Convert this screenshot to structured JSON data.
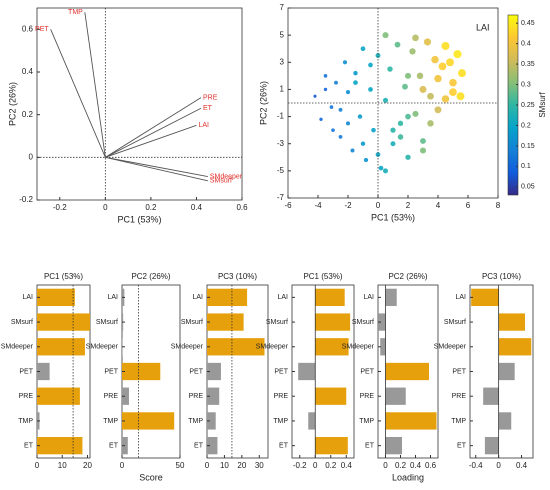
{
  "chart_data": [
    {
      "type": "biplot",
      "xlabel": "PC1 (53%)",
      "ylabel": "PC2 (26%)",
      "xlim": [
        -0.3,
        0.6
      ],
      "ylim": [
        -0.2,
        0.7
      ],
      "xticks": [
        -0.2,
        0,
        0.2,
        0.4,
        0.6
      ],
      "yticks": [
        -0.2,
        0,
        0.2,
        0.4,
        0.6
      ],
      "color": "#e0302a",
      "vectors": [
        {
          "name": "PET",
          "x": -0.24,
          "y": 0.6
        },
        {
          "name": "TMP",
          "x": -0.09,
          "y": 0.68
        },
        {
          "name": "PRE",
          "x": 0.42,
          "y": 0.28
        },
        {
          "name": "ET",
          "x": 0.42,
          "y": 0.23
        },
        {
          "name": "LAI",
          "x": 0.4,
          "y": 0.15
        },
        {
          "name": "SMdeeper",
          "x": 0.45,
          "y": -0.09
        },
        {
          "name": "SMsurf",
          "x": 0.45,
          "y": -0.11
        }
      ]
    },
    {
      "type": "scatter",
      "annotation": "LAI",
      "xlabel": "PC1 (53%)",
      "ylabel": "PC2 (26%)",
      "colorbar_label": "SMsurf",
      "xlim": [
        -6,
        8
      ],
      "ylim": [
        -7,
        7
      ],
      "xticks": [
        -6,
        -4,
        -2,
        0,
        2,
        4,
        6,
        8
      ],
      "yticks": [
        -7,
        -5,
        -3,
        -1,
        1,
        3,
        5,
        7
      ],
      "clim": [
        0.03,
        0.47
      ],
      "cticks": [
        0.05,
        0.1,
        0.15,
        0.2,
        0.25,
        0.3,
        0.35,
        0.4,
        0.45
      ],
      "x": [
        -4.2,
        -3.8,
        -3.5,
        -3.1,
        -2.8,
        -2.5,
        -2.2,
        -2.0,
        -1.7,
        -1.5,
        -1.2,
        -1.0,
        -0.8,
        -0.5,
        -0.3,
        0,
        0.2,
        0.5,
        0.8,
        1.0,
        1.3,
        1.5,
        1.8,
        2.0,
        2.3,
        2.5,
        2.8,
        3.0,
        3.3,
        3.5,
        3.8,
        4.0,
        4.3,
        4.5,
        4.8,
        5.0,
        5.3,
        5.6,
        -3,
        -2,
        -1,
        0,
        1,
        2,
        3,
        4,
        5,
        -1.5,
        0.5,
        2.5,
        4.5,
        -2.5,
        1.5,
        3.5,
        -0.5,
        0.5,
        3.0,
        5.5,
        -3.5,
        2.0
      ],
      "y": [
        0.5,
        -1.2,
        2.0,
        -0.3,
        1.5,
        -2.5,
        3.0,
        0.8,
        -3.5,
        2.2,
        -1.0,
        4.0,
        -4.2,
        1.0,
        -2.0,
        3.5,
        -4.8,
        0.2,
        2.5,
        -3.0,
        4.3,
        -1.5,
        1.2,
        -4.0,
        3.8,
        -0.8,
        2.0,
        -2.8,
        4.5,
        0.5,
        3.2,
        1.8,
        2.7,
        4.2,
        3.0,
        1.5,
        3.6,
        2.2,
        -2.0,
        -1.5,
        -3.0,
        -3.8,
        -2.0,
        -1.0,
        -3.5,
        -0.5,
        0.8,
        1.5,
        5.0,
        4.8,
        0.3,
        -0.5,
        -2.5,
        -1.5,
        2.8,
        -5.0,
        1.0,
        0.5,
        1.0,
        2.0
      ],
      "c": [
        0.08,
        0.1,
        0.12,
        0.12,
        0.14,
        0.13,
        0.16,
        0.16,
        0.15,
        0.18,
        0.18,
        0.2,
        0.17,
        0.2,
        0.19,
        0.22,
        0.2,
        0.23,
        0.25,
        0.22,
        0.28,
        0.25,
        0.28,
        0.24,
        0.32,
        0.3,
        0.33,
        0.28,
        0.38,
        0.35,
        0.4,
        0.4,
        0.42,
        0.44,
        0.43,
        0.41,
        0.45,
        0.44,
        0.12,
        0.15,
        0.18,
        0.2,
        0.24,
        0.27,
        0.3,
        0.36,
        0.42,
        0.2,
        0.3,
        0.34,
        0.4,
        0.14,
        0.26,
        0.33,
        0.2,
        0.22,
        0.37,
        0.44,
        0.1,
        0.3
      ]
    },
    {
      "type": "hbar",
      "title": "PC1 (53%)",
      "categories": [
        "LAI",
        "SMsurf",
        "SMdeeper",
        "PET",
        "PRE",
        "TMP",
        "ET"
      ],
      "values": [
        15,
        21,
        19,
        5,
        17,
        1,
        18
      ],
      "colors": [
        "#e6a00b",
        "#e6a00b",
        "#e6a00b",
        "#999999",
        "#e6a00b",
        "#999999",
        "#e6a00b"
      ],
      "xlim": [
        0,
        21
      ],
      "xticks": [
        0,
        10,
        20
      ],
      "refline": 14.3
    },
    {
      "type": "hbar",
      "title": "PC2 (26%)",
      "xlabel": "Score",
      "categories": [
        "LAI",
        "SMsurf",
        "SMdeeper",
        "PET",
        "PRE",
        "TMP",
        "ET"
      ],
      "values": [
        2,
        1,
        0.5,
        33,
        6,
        45,
        5
      ],
      "colors": [
        "#999999",
        "#999999",
        "#999999",
        "#e6a00b",
        "#999999",
        "#e6a00b",
        "#999999"
      ],
      "xlim": [
        0,
        50
      ],
      "xticks": [
        0,
        50
      ],
      "refline": 14.3
    },
    {
      "type": "hbar",
      "title": "PC3 (10%)",
      "categories": [
        "LAI",
        "SMsurf",
        "SMdeeper",
        "PET",
        "PRE",
        "TMP",
        "ET"
      ],
      "values": [
        23,
        21,
        33,
        8,
        7,
        5,
        6
      ],
      "colors": [
        "#e6a00b",
        "#e6a00b",
        "#e6a00b",
        "#999999",
        "#999999",
        "#999999",
        "#999999"
      ],
      "xlim": [
        0,
        35
      ],
      "xticks": [
        0,
        10,
        20,
        30
      ],
      "refline": 14.3
    },
    {
      "type": "hbar",
      "title": "PC1 (53%)",
      "categories": [
        "LAI",
        "SMsurf",
        "SMdeeper",
        "PET",
        "PRE",
        "TMP",
        "ET"
      ],
      "values": [
        0.38,
        0.45,
        0.43,
        -0.22,
        0.4,
        -0.09,
        0.42
      ],
      "colors": [
        "#e6a00b",
        "#e6a00b",
        "#e6a00b",
        "#999999",
        "#e6a00b",
        "#999999",
        "#e6a00b"
      ],
      "xlim": [
        -0.3,
        0.5
      ],
      "xticks": [
        -0.2,
        0,
        0.2,
        0.4
      ]
    },
    {
      "type": "hbar",
      "title": "PC2 (26%)",
      "xlabel": "Loading",
      "categories": [
        "LAI",
        "SMsurf",
        "SMdeeper",
        "PET",
        "PRE",
        "TMP",
        "ET"
      ],
      "values": [
        0.15,
        -0.09,
        -0.07,
        0.58,
        0.27,
        0.68,
        0.22
      ],
      "colors": [
        "#999999",
        "#999999",
        "#999999",
        "#e6a00b",
        "#999999",
        "#e6a00b",
        "#999999"
      ],
      "xlim": [
        -0.1,
        0.7
      ],
      "xticks": [
        0,
        0.2,
        0.4,
        0.6
      ]
    },
    {
      "type": "hbar",
      "title": "PC3 (10%)",
      "categories": [
        "LAI",
        "SMsurf",
        "SMdeeper",
        "PET",
        "PRE",
        "TMP",
        "ET"
      ],
      "values": [
        -0.48,
        0.46,
        0.57,
        0.28,
        -0.27,
        0.22,
        -0.24
      ],
      "colors": [
        "#e6a00b",
        "#e6a00b",
        "#e6a00b",
        "#999999",
        "#999999",
        "#999999",
        "#999999"
      ],
      "xlim": [
        -0.5,
        0.6
      ],
      "xticks": [
        -0.4,
        0,
        0.4
      ]
    }
  ]
}
